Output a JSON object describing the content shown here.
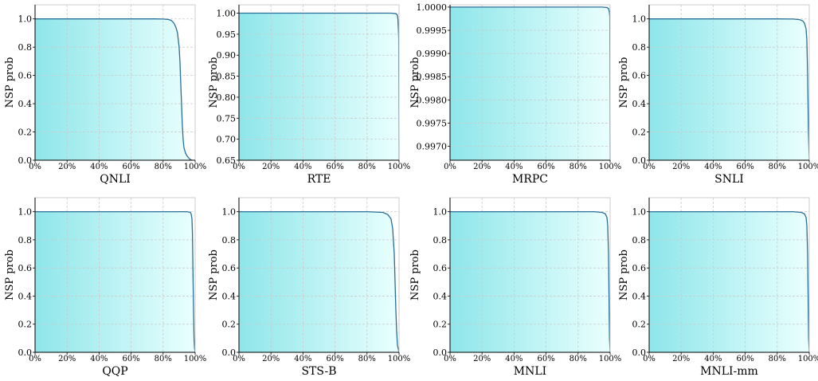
{
  "figure": {
    "percent_ticks": [
      "0%",
      "20%",
      "40%",
      "60%",
      "80%",
      "100%"
    ],
    "colors": {
      "line": "#2a6f97",
      "fill_left": "#8ee6ea",
      "fill_right": "#eafffe",
      "grid": "#cccccc",
      "axis": "#000000"
    }
  },
  "chart_data": [
    {
      "type": "area",
      "xlabel": "QNLI",
      "ylabel": "NSP prob",
      "xlim": [
        0,
        100
      ],
      "ylim": [
        0,
        1.1
      ],
      "yticks": [
        "0.0",
        "0.2",
        "0.4",
        "0.6",
        "0.8",
        "1.0"
      ],
      "x": [
        0,
        20,
        40,
        60,
        75,
        80,
        83,
        85,
        86,
        87,
        88,
        89,
        90,
        90.5,
        91,
        91.5,
        92,
        92.5,
        93,
        94,
        95,
        96,
        97,
        98
      ],
      "y": [
        1.0,
        1.0,
        1.0,
        1.0,
        1.0,
        0.999,
        0.997,
        0.99,
        0.98,
        0.965,
        0.94,
        0.9,
        0.8,
        0.7,
        0.55,
        0.4,
        0.25,
        0.15,
        0.09,
        0.05,
        0.03,
        0.015,
        0.005,
        0.0
      ]
    },
    {
      "type": "area",
      "xlabel": "RTE",
      "ylabel": "NSP prob",
      "xlim": [
        0,
        100
      ],
      "ylim": [
        0.65,
        1.02
      ],
      "yticks": [
        "0.65",
        "0.70",
        "0.75",
        "0.80",
        "0.85",
        "0.90",
        "0.95",
        "1.00"
      ],
      "x": [
        0,
        20,
        40,
        60,
        80,
        95,
        98,
        99,
        99.3,
        99.6,
        99.8,
        100
      ],
      "y": [
        1.0,
        1.0,
        1.0,
        1.0,
        1.0,
        1.0,
        0.999,
        0.995,
        0.985,
        0.96,
        0.94,
        0.65
      ]
    },
    {
      "type": "area",
      "xlabel": "MRPC",
      "ylabel": "NSP prob",
      "xlim": [
        0,
        100
      ],
      "ylim": [
        0.9967,
        1.00005
      ],
      "yticks": [
        "0.9970",
        "0.9975",
        "0.9980",
        "0.9985",
        "0.9990",
        "0.9995",
        "1.0000"
      ],
      "x": [
        0,
        20,
        40,
        60,
        80,
        95,
        98,
        99,
        99.5,
        99.8,
        100
      ],
      "y": [
        1.0,
        1.0,
        1.0,
        1.0,
        1.0,
        1.0,
        0.99999,
        0.99997,
        0.9999,
        0.9998,
        0.9967
      ]
    },
    {
      "type": "area",
      "xlabel": "SNLI",
      "ylabel": "NSP prob",
      "xlim": [
        0,
        100
      ],
      "ylim": [
        0,
        1.1
      ],
      "yticks": [
        "0.0",
        "0.2",
        "0.4",
        "0.6",
        "0.8",
        "1.0"
      ],
      "x": [
        0,
        20,
        40,
        60,
        80,
        90,
        94,
        96,
        97,
        98,
        98.5,
        99,
        99.5,
        100
      ],
      "y": [
        1.0,
        1.0,
        1.0,
        1.0,
        1.0,
        0.999,
        0.995,
        0.985,
        0.97,
        0.93,
        0.85,
        0.6,
        0.2,
        0.0
      ]
    },
    {
      "type": "area",
      "xlabel": "QQP",
      "ylabel": "NSP prob",
      "xlim": [
        0,
        100
      ],
      "ylim": [
        0,
        1.1
      ],
      "yticks": [
        "0.0",
        "0.2",
        "0.4",
        "0.6",
        "0.8",
        "1.0"
      ],
      "x": [
        0,
        20,
        40,
        60,
        80,
        95,
        97,
        97.5,
        98,
        98.3,
        98.6,
        99,
        99.3,
        99.6,
        100
      ],
      "y": [
        1.0,
        1.0,
        1.0,
        1.0,
        1.0,
        1.0,
        0.995,
        0.985,
        0.95,
        0.85,
        0.6,
        0.3,
        0.1,
        0.03,
        0.0
      ]
    },
    {
      "type": "area",
      "xlabel": "STS-B",
      "ylabel": "NSP prob",
      "xlim": [
        0,
        100
      ],
      "ylim": [
        0,
        1.1
      ],
      "yticks": [
        "0.0",
        "0.2",
        "0.4",
        "0.6",
        "0.8",
        "1.0"
      ],
      "x": [
        0,
        20,
        40,
        60,
        80,
        90,
        93,
        95,
        96,
        97,
        97.5,
        98,
        98.5,
        99,
        100
      ],
      "y": [
        1.0,
        1.0,
        1.0,
        1.0,
        1.0,
        0.995,
        0.98,
        0.95,
        0.88,
        0.7,
        0.5,
        0.3,
        0.15,
        0.05,
        0.0
      ]
    },
    {
      "type": "area",
      "xlabel": "MNLI",
      "ylabel": "NSP prob",
      "xlim": [
        0,
        100
      ],
      "ylim": [
        0,
        1.1
      ],
      "yticks": [
        "0.0",
        "0.2",
        "0.4",
        "0.6",
        "0.8",
        "1.0"
      ],
      "x": [
        0,
        20,
        40,
        60,
        80,
        90,
        95,
        97,
        98,
        98.5,
        99,
        99.3,
        99.6,
        100
      ],
      "y": [
        1.0,
        1.0,
        1.0,
        1.0,
        1.0,
        1.0,
        0.995,
        0.985,
        0.96,
        0.9,
        0.7,
        0.4,
        0.1,
        0.0
      ]
    },
    {
      "type": "area",
      "xlabel": "MNLI-mm",
      "ylabel": "NSP prob",
      "xlim": [
        0,
        100
      ],
      "ylim": [
        0,
        1.1
      ],
      "yticks": [
        "0.0",
        "0.2",
        "0.4",
        "0.6",
        "0.8",
        "1.0"
      ],
      "x": [
        0,
        20,
        40,
        60,
        80,
        90,
        95,
        97,
        98,
        98.5,
        99,
        99.3,
        99.6,
        100
      ],
      "y": [
        1.0,
        1.0,
        1.0,
        1.0,
        1.0,
        1.0,
        0.995,
        0.985,
        0.96,
        0.9,
        0.7,
        0.4,
        0.1,
        0.0
      ]
    }
  ]
}
